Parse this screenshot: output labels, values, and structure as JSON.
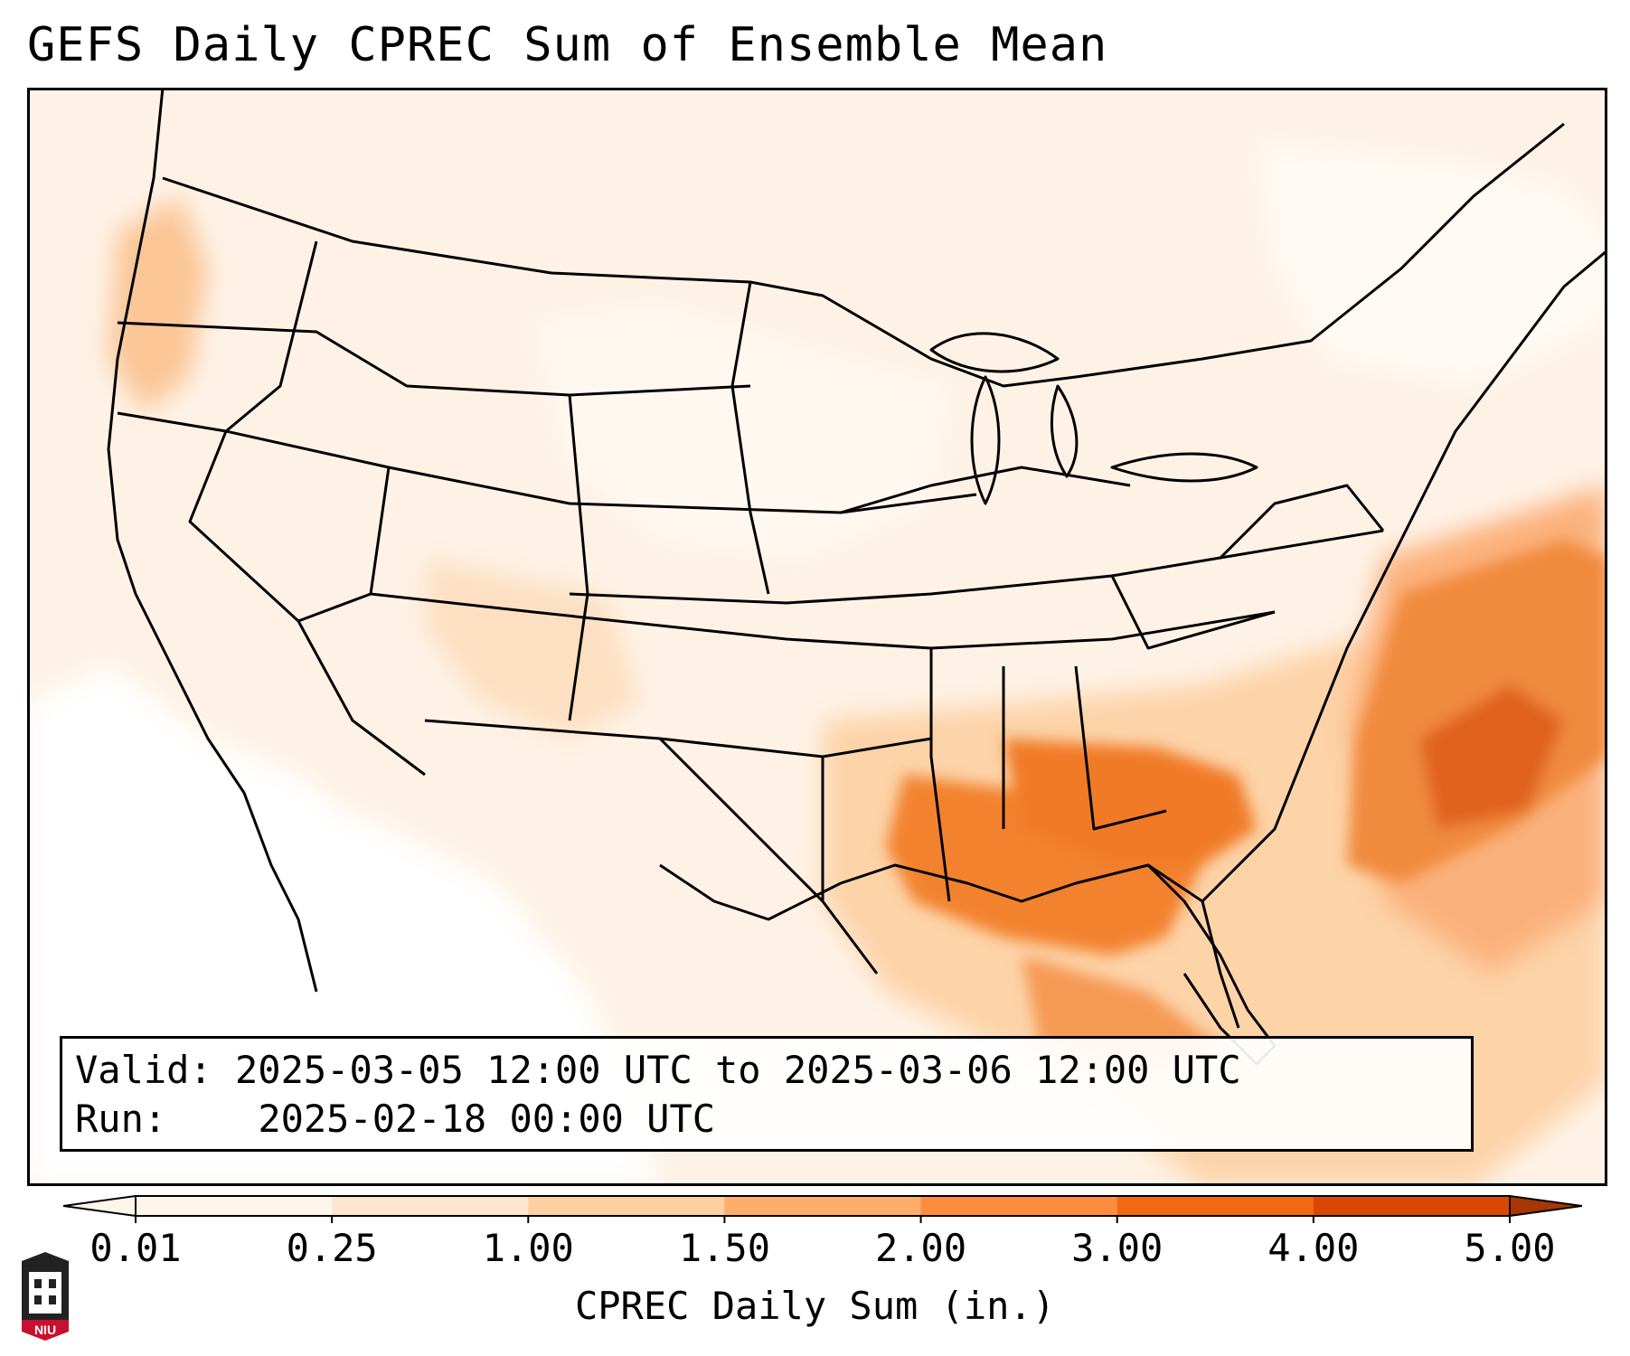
{
  "title": "GEFS Daily CPREC Sum of Ensemble Mean",
  "info": {
    "valid_label": "Valid:",
    "valid_value": "2025-03-05 12:00 UTC to 2025-03-06 12:00 UTC",
    "run_label": "Run:",
    "run_value": "2025-02-18 00:00 UTC"
  },
  "colorbar": {
    "title": "CPREC Daily Sum (in.)",
    "ticks": [
      "0.01",
      "0.25",
      "1.00",
      "1.50",
      "2.00",
      "3.00",
      "4.00",
      "5.00"
    ],
    "colors": [
      "#fff5eb",
      "#fee6ce",
      "#fdd0a2",
      "#fdae6b",
      "#fd8d3c",
      "#f16913",
      "#d94801",
      "#a63603"
    ],
    "extend": "both"
  },
  "logo": {
    "text": "NIU"
  },
  "map": {
    "region": "Continental United States",
    "accent_colors": {
      "light": "#fdf0e2",
      "medium": "#fdd0a2",
      "heavy": "#f16913",
      "max": "#d94801"
    }
  }
}
